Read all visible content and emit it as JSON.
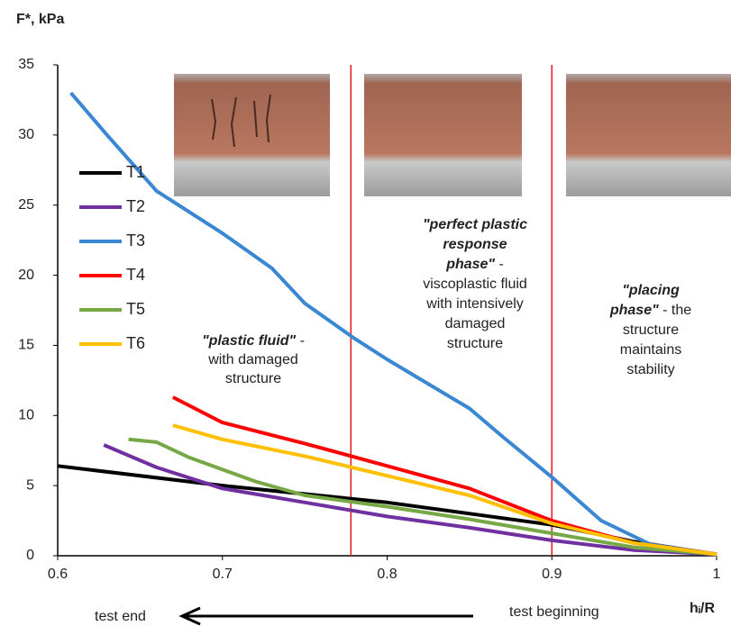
{
  "chart_data": {
    "type": "line",
    "y_axis_label": "F*, kPa",
    "x_axis_label": "hᵢ/R",
    "xlim": [
      0.6,
      1
    ],
    "xticks": [
      0.6,
      0.7,
      0.8,
      0.9,
      1
    ],
    "ylim": [
      0,
      35
    ],
    "yticks": [
      0,
      5,
      10,
      15,
      20,
      25,
      30,
      35
    ],
    "grid": false,
    "legend": "left",
    "vlines": {
      "color": "#e8191c",
      "x": [
        0.778,
        0.9
      ]
    },
    "series": [
      {
        "name": "T1",
        "color": "#000000",
        "x": [
          0.6,
          0.7,
          0.8,
          0.9,
          0.95,
          1
        ],
        "values": [
          6.4,
          5.0,
          3.8,
          2.2,
          1.0,
          0.1
        ]
      },
      {
        "name": "T2",
        "color": "#7030a0",
        "x": [
          0.628,
          0.66,
          0.7,
          0.75,
          0.8,
          0.85,
          0.9,
          0.95,
          1
        ],
        "values": [
          7.9,
          6.3,
          4.8,
          3.8,
          2.8,
          2.0,
          1.1,
          0.4,
          0.1
        ]
      },
      {
        "name": "T3",
        "color": "#3a87d3",
        "x": [
          0.608,
          0.63,
          0.66,
          0.7,
          0.73,
          0.75,
          0.78,
          0.8,
          0.85,
          0.87,
          0.9,
          0.93,
          0.96,
          1
        ],
        "values": [
          33,
          30,
          26,
          23,
          20.5,
          18,
          15.5,
          14,
          10.5,
          8.5,
          5.6,
          2.5,
          0.8,
          0.1
        ]
      },
      {
        "name": "T4",
        "color": "#ff0000",
        "x": [
          0.67,
          0.7,
          0.75,
          0.8,
          0.85,
          0.9,
          0.95,
          1
        ],
        "values": [
          11.3,
          9.5,
          8.0,
          6.4,
          4.8,
          2.5,
          0.9,
          0.1
        ]
      },
      {
        "name": "T5",
        "color": "#77a846",
        "x": [
          0.643,
          0.66,
          0.68,
          0.72,
          0.75,
          0.8,
          0.85,
          0.9,
          0.95,
          1
        ],
        "values": [
          8.3,
          8.1,
          7.0,
          5.3,
          4.3,
          3.5,
          2.6,
          1.6,
          0.6,
          0.1
        ]
      },
      {
        "name": "T6",
        "color": "#ffc000",
        "x": [
          0.67,
          0.7,
          0.75,
          0.8,
          0.85,
          0.9,
          0.95,
          1
        ],
        "values": [
          9.3,
          8.3,
          7.1,
          5.7,
          4.3,
          2.3,
          0.9,
          0.1
        ]
      }
    ],
    "annotations": [
      {
        "lines": [
          [
            {
              "text": "\"plastic fluid\"",
              "emphasis": true
            },
            {
              "text": " -"
            }
          ],
          [
            {
              "text": "with damaged"
            }
          ],
          [
            {
              "text": "structure"
            }
          ]
        ]
      },
      {
        "lines": [
          [
            {
              "text": "\"perfect plastic",
              "emphasis": true
            }
          ],
          [
            {
              "text": "response",
              "emphasis": true
            }
          ],
          [
            {
              "text": "phase\"",
              "emphasis": true
            },
            {
              "text": " -"
            }
          ],
          [
            {
              "text": "viscoplastic fluid"
            }
          ],
          [
            {
              "text": "with intensively"
            }
          ],
          [
            {
              "text": "damaged"
            }
          ],
          [
            {
              "text": "structure"
            }
          ]
        ]
      },
      {
        "lines": [
          [
            {
              "text": "\"placing",
              "emphasis": true
            }
          ],
          [
            {
              "text": "phase\"",
              "emphasis": true
            },
            {
              "text": " - the"
            }
          ],
          [
            {
              "text": "structure"
            }
          ],
          [
            {
              "text": "maintains"
            }
          ],
          [
            {
              "text": "stability"
            }
          ]
        ]
      }
    ],
    "direction_labels": {
      "end": "test end",
      "start": "test beginning"
    }
  }
}
